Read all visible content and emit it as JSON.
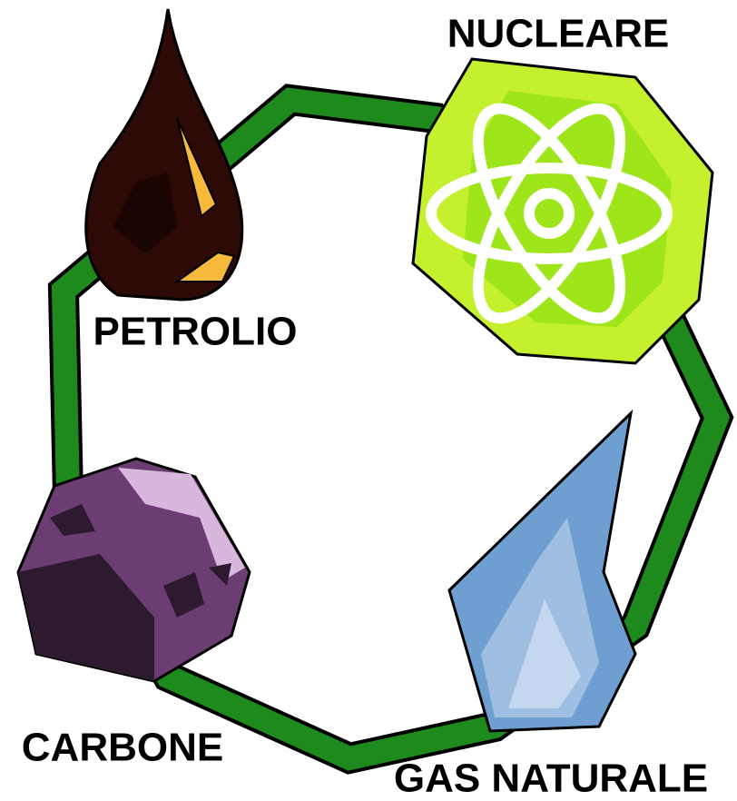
{
  "nodes": [
    {
      "label": "NUCLEARE"
    },
    {
      "label": "PETROLIO"
    },
    {
      "label": "CARBONE"
    },
    {
      "label": "GAS NATURALE"
    }
  ]
}
